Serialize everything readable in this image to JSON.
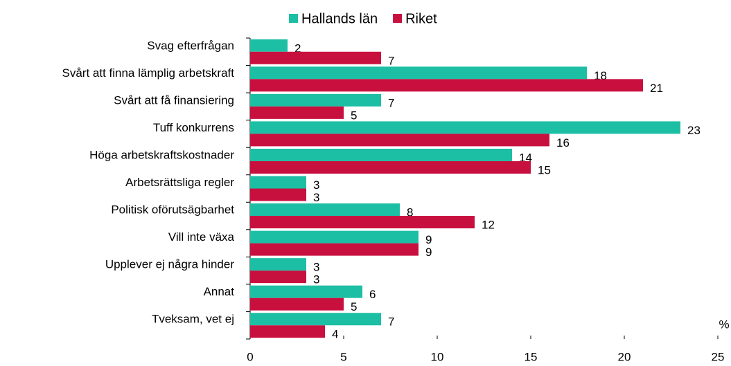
{
  "chart_data": {
    "type": "bar",
    "orientation": "horizontal",
    "categories": [
      "Svag efterfrågan",
      "Svårt att finna lämplig arbetskraft",
      "Svårt att få finansiering",
      "Tuff konkurrens",
      "Höga arbetskraftskostnader",
      "Arbetsrättsliga regler",
      "Politisk oförutsägbarhet",
      "Vill inte växa",
      "Upplever ej några hinder",
      "Annat",
      "Tveksam, vet ej"
    ],
    "series": [
      {
        "name": "Hallands län",
        "color": "#1dbfa4",
        "values": [
          2,
          18,
          7,
          23,
          14,
          3,
          8,
          9,
          3,
          6,
          7
        ]
      },
      {
        "name": "Riket",
        "color": "#c8103f",
        "values": [
          7,
          21,
          5,
          16,
          15,
          3,
          12,
          9,
          3,
          5,
          4
        ]
      }
    ],
    "xlabel": "%",
    "xlim": [
      0,
      25
    ],
    "xticks": [
      0,
      5,
      10,
      15,
      20,
      25
    ],
    "legend": "top",
    "grid": false
  }
}
